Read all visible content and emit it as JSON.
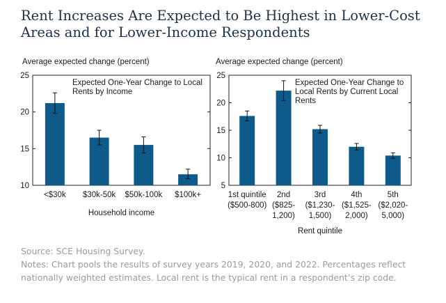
{
  "title": "Rent Increases Are Expected to Be Highest in Lower-Cost Areas and for Lower-Income Respondents",
  "source": "Source: SCE Housing Survey.",
  "notes": "Notes: Chart pools the results of survey years 2019, 2020, and 2022. Percentages reflect nationally weighted estimates. Local rent is the typical rent in a respondent’s zip code.",
  "colors": {
    "bar": "#0e5a8a",
    "text": "#1a1a1a",
    "title": "#1e2f47"
  },
  "chart_data": [
    {
      "type": "bar",
      "title": "Expected One-Year Change to Local Rents by Income",
      "ylabel": "Average expected change (percent)",
      "xlabel": "Household income",
      "ylim": [
        10,
        25
      ],
      "yticks": [
        10,
        15,
        20,
        25
      ],
      "categories": [
        "<$30k",
        "$30k-50k",
        "$50k-100k",
        "$100k+"
      ],
      "values": [
        21.2,
        16.5,
        15.5,
        11.5
      ],
      "error_low": [
        19.8,
        15.5,
        14.4,
        10.9
      ],
      "error_high": [
        22.6,
        17.5,
        16.6,
        12.2
      ]
    },
    {
      "type": "bar",
      "title": "Expected One-Year Change to Local Rents by Current Local Rents",
      "ylabel": "Average expected change (percent)",
      "xlabel": "Rent quintile",
      "ylim": [
        5,
        25
      ],
      "yticks": [
        5,
        10,
        15,
        20,
        25
      ],
      "categories": [
        "1st quintile ($500-800)",
        "2nd ($825-1,200)",
        "3rd ($1,230-1,500)",
        "4th ($1,525-2,000)",
        "5th ($2,020-5,000)"
      ],
      "values": [
        17.6,
        22.2,
        15.2,
        12.0,
        10.4
      ],
      "error_low": [
        16.7,
        20.4,
        14.5,
        11.4,
        9.9
      ],
      "error_high": [
        18.5,
        24.0,
        15.9,
        12.6,
        10.9
      ]
    }
  ]
}
